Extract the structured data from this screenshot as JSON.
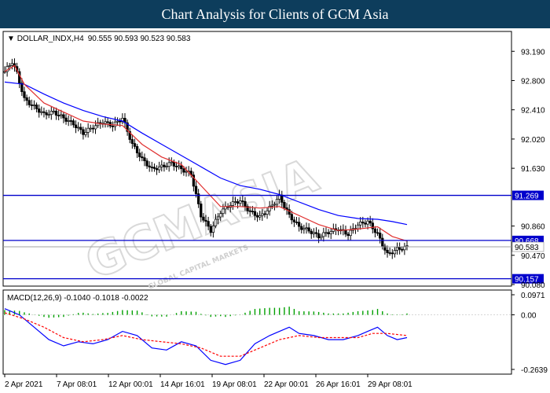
{
  "banner": {
    "title": "Chart Analysis for Clients of GCM Asia"
  },
  "chart_data": [
    {
      "type": "candlestick",
      "symbol_header": "DOLLAR_INDX,H4",
      "ohlc_header": "90.555 90.593 90.523 90.583",
      "ylim": [
        90.08,
        93.35
      ],
      "y_ticks": [
        "93.190",
        "92.800",
        "92.410",
        "92.020",
        "91.630",
        "90.860",
        "90.470",
        "90.080"
      ],
      "last_price": "90.583",
      "horizontal_levels": [
        {
          "value": 91.269,
          "label": "91.269",
          "color": "#0000cc"
        },
        {
          "value": 90.668,
          "label": "90.668",
          "color": "#0000cc"
        },
        {
          "value": 90.157,
          "label": "90.157",
          "color": "#0000cc"
        }
      ],
      "x_labels": [
        "2 Apr 2021",
        "7 Apr 08:01",
        "12 Apr 00:01",
        "14 Apr 16:01",
        "19 Apr 08:01",
        "22 Apr 00:01",
        "26 Apr 16:01",
        "29 Apr 08:01"
      ],
      "close_path": [
        [
          0,
          92.92
        ],
        [
          3,
          93.05
        ],
        [
          5,
          92.9
        ],
        [
          8,
          92.55
        ],
        [
          12,
          92.45
        ],
        [
          16,
          92.35
        ],
        [
          20,
          92.38
        ],
        [
          24,
          92.3
        ],
        [
          28,
          92.22
        ],
        [
          32,
          92.1
        ],
        [
          36,
          92.18
        ],
        [
          40,
          92.25
        ],
        [
          44,
          92.2
        ],
        [
          48,
          92.3
        ],
        [
          52,
          91.95
        ],
        [
          56,
          91.75
        ],
        [
          60,
          91.62
        ],
        [
          64,
          91.65
        ],
        [
          68,
          91.7
        ],
        [
          72,
          91.62
        ],
        [
          76,
          91.55
        ],
        [
          80,
          91.0
        ],
        [
          84,
          90.8
        ],
        [
          88,
          91.05
        ],
        [
          92,
          91.15
        ],
        [
          96,
          91.2
        ],
        [
          100,
          91.05
        ],
        [
          104,
          90.98
        ],
        [
          108,
          91.1
        ],
        [
          112,
          91.25
        ],
        [
          116,
          91.0
        ],
        [
          120,
          90.85
        ],
        [
          124,
          90.8
        ],
        [
          128,
          90.72
        ],
        [
          132,
          90.78
        ],
        [
          136,
          90.82
        ],
        [
          140,
          90.75
        ],
        [
          144,
          90.88
        ],
        [
          148,
          90.92
        ],
        [
          152,
          90.75
        ],
        [
          156,
          90.48
        ],
        [
          160,
          90.55
        ],
        [
          164,
          90.58
        ]
      ],
      "ma_fast_color": "#e03030",
      "ma_slow_color": "#0000ff",
      "ma_fast": [
        [
          0,
          92.92
        ],
        [
          4,
          93.0
        ],
        [
          8,
          92.75
        ],
        [
          16,
          92.5
        ],
        [
          24,
          92.38
        ],
        [
          32,
          92.26
        ],
        [
          40,
          92.22
        ],
        [
          48,
          92.2
        ],
        [
          56,
          91.95
        ],
        [
          64,
          91.78
        ],
        [
          72,
          91.68
        ],
        [
          80,
          91.4
        ],
        [
          88,
          91.12
        ],
        [
          96,
          91.12
        ],
        [
          104,
          91.1
        ],
        [
          112,
          91.12
        ],
        [
          120,
          91.0
        ],
        [
          128,
          90.88
        ],
        [
          136,
          90.8
        ],
        [
          144,
          90.82
        ],
        [
          152,
          90.85
        ],
        [
          158,
          90.72
        ],
        [
          164,
          90.66
        ]
      ],
      "ma_slow": [
        [
          0,
          92.78
        ],
        [
          8,
          92.75
        ],
        [
          16,
          92.62
        ],
        [
          24,
          92.5
        ],
        [
          32,
          92.4
        ],
        [
          40,
          92.32
        ],
        [
          48,
          92.26
        ],
        [
          56,
          92.1
        ],
        [
          64,
          91.95
        ],
        [
          72,
          91.8
        ],
        [
          80,
          91.65
        ],
        [
          88,
          91.5
        ],
        [
          96,
          91.4
        ],
        [
          104,
          91.35
        ],
        [
          112,
          91.28
        ],
        [
          120,
          91.18
        ],
        [
          128,
          91.08
        ],
        [
          136,
          91.0
        ],
        [
          144,
          90.96
        ],
        [
          152,
          90.95
        ],
        [
          158,
          90.92
        ],
        [
          164,
          90.88
        ]
      ]
    },
    {
      "type": "macd",
      "header": "MACD(12,26,9) -0.1040 -0.1018 -0.0022",
      "ylim": [
        -0.2639,
        0.0971
      ],
      "y_ticks": [
        "0.0971",
        "0.00",
        "-0.2639"
      ],
      "histogram_color": "#00a000",
      "macd_color": "#0000ff",
      "signal_color": "#ff0000",
      "macd_line": [
        [
          0,
          0.03
        ],
        [
          6,
          0.0
        ],
        [
          12,
          -0.06
        ],
        [
          18,
          -0.12
        ],
        [
          24,
          -0.15
        ],
        [
          30,
          -0.13
        ],
        [
          36,
          -0.14
        ],
        [
          42,
          -0.12
        ],
        [
          48,
          -0.08
        ],
        [
          54,
          -0.1
        ],
        [
          60,
          -0.16
        ],
        [
          66,
          -0.17
        ],
        [
          72,
          -0.13
        ],
        [
          78,
          -0.15
        ],
        [
          84,
          -0.22
        ],
        [
          90,
          -0.24
        ],
        [
          96,
          -0.22
        ],
        [
          102,
          -0.14
        ],
        [
          108,
          -0.1
        ],
        [
          112,
          -0.08
        ],
        [
          116,
          -0.06
        ],
        [
          120,
          -0.09
        ],
        [
          126,
          -0.1
        ],
        [
          132,
          -0.12
        ],
        [
          138,
          -0.12
        ],
        [
          144,
          -0.1
        ],
        [
          148,
          -0.08
        ],
        [
          152,
          -0.06
        ],
        [
          156,
          -0.1
        ],
        [
          160,
          -0.12
        ],
        [
          164,
          -0.11
        ]
      ],
      "signal_line": [
        [
          0,
          0.01
        ],
        [
          8,
          -0.02
        ],
        [
          16,
          -0.06
        ],
        [
          24,
          -0.11
        ],
        [
          32,
          -0.13
        ],
        [
          40,
          -0.12
        ],
        [
          48,
          -0.1
        ],
        [
          56,
          -0.12
        ],
        [
          64,
          -0.13
        ],
        [
          72,
          -0.14
        ],
        [
          80,
          -0.16
        ],
        [
          88,
          -0.2
        ],
        [
          96,
          -0.2
        ],
        [
          104,
          -0.16
        ],
        [
          112,
          -0.12
        ],
        [
          120,
          -0.1
        ],
        [
          128,
          -0.11
        ],
        [
          136,
          -0.11
        ],
        [
          144,
          -0.11
        ],
        [
          150,
          -0.09
        ],
        [
          156,
          -0.09
        ],
        [
          164,
          -0.1
        ]
      ]
    }
  ],
  "watermark": {
    "brand": "GCMASIA",
    "tagline": "GLOBAL CAPITAL MARKETS"
  }
}
